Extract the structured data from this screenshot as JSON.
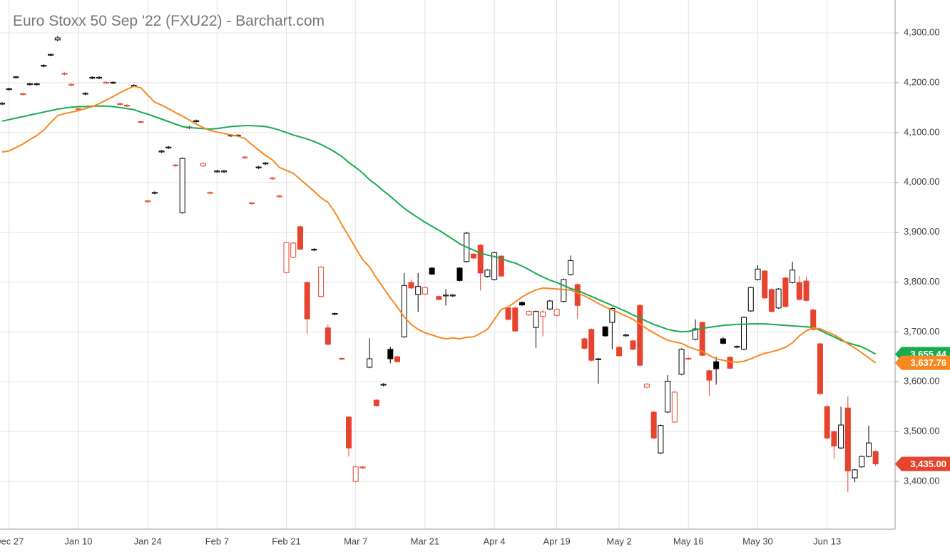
{
  "chart_data": {
    "type": "candlestick",
    "title": "Euro Stoxx 50 Sep '22 (FXU22) - Barchart.com",
    "categories": [
      null,
      "Dec 27",
      null,
      null,
      null,
      null,
      null,
      null,
      null,
      null,
      null,
      "Jan 10",
      null,
      null,
      null,
      null,
      null,
      null,
      null,
      null,
      null,
      "Jan 24",
      null,
      null,
      null,
      null,
      null,
      null,
      null,
      null,
      null,
      "Feb 7",
      null,
      null,
      null,
      null,
      null,
      null,
      null,
      null,
      null,
      "Feb 21",
      null,
      null,
      null,
      null,
      null,
      null,
      null,
      null,
      null,
      "Mar 7",
      null,
      null,
      null,
      null,
      null,
      null,
      null,
      null,
      null,
      "Mar 21",
      null,
      null,
      null,
      null,
      null,
      null,
      null,
      null,
      null,
      "Apr 4",
      null,
      null,
      null,
      null,
      null,
      null,
      null,
      null,
      "Apr 19",
      null,
      null,
      null,
      null,
      null,
      null,
      null,
      null,
      "May 2",
      null,
      null,
      null,
      null,
      null,
      null,
      null,
      null,
      null,
      "May 16",
      null,
      null,
      null,
      null,
      null,
      null,
      null,
      null,
      null,
      "May 30",
      null,
      null,
      null,
      null,
      null,
      null,
      null,
      null,
      null,
      "Jun 13",
      null,
      null,
      null,
      null,
      null,
      null,
      null
    ],
    "open": [
      4158,
      4187,
      4211,
      4177,
      4197,
      4197,
      4234,
      4256,
      4286,
      4218,
      4196,
      4147,
      4178,
      4210,
      4210,
      4200,
      4200,
      4157,
      4154,
      4194,
      4121,
      3962,
      3979,
      4062,
      4070,
      4034,
      3939,
      4110,
      4123,
      4033,
      3979,
      4022,
      4022,
      4094,
      4094,
      4050,
      3958,
      4030,
      4038,
      4008,
      3972,
      3819,
      3850,
      3911,
      3799,
      3865,
      3771,
      3708,
      3736,
      3646,
      3529,
      3400,
      3428,
      3629,
      3563,
      3594,
      3665,
      3650,
      3690,
      3799,
      3775,
      3776,
      3828,
      3771,
      3773,
      3773,
      3828,
      3841,
      3856,
      3874,
      3811,
      3805,
      3852,
      3748,
      3748,
      3759,
      3734,
      3709,
      3731,
      3746,
      3733,
      3761,
      3815,
      3795,
      3686,
      3705,
      3645,
      3710,
      3719,
      3669,
      3693,
      3682,
      3753,
      3589,
      3539,
      3457,
      3539,
      3519,
      3615,
      3646,
      3685,
      3719,
      3622,
      3640,
      3686,
      3649,
      3670,
      3665,
      3742,
      3805,
      3822,
      3785,
      3748,
      3808,
      3799,
      3799,
      3802,
      3744,
      3676,
      3550,
      3500,
      3467,
      3547,
      3407,
      3429,
      3450,
      3460
    ],
    "high": [
      4161,
      4190,
      4214,
      4180,
      4200,
      4200,
      4237,
      4259,
      4294,
      4221,
      4199,
      4150,
      4181,
      4213,
      4213,
      4203,
      4203,
      4160,
      4157,
      4197,
      4124,
      3965,
      3982,
      4065,
      4073,
      4037,
      4050,
      4113,
      4126,
      4039,
      3982,
      4025,
      4025,
      4097,
      4097,
      4053,
      3961,
      4033,
      4041,
      4011,
      3975,
      3881,
      3880,
      3913,
      3801,
      3868,
      3832,
      3715,
      3739,
      3649,
      3531,
      3431,
      3431,
      3687,
      3565,
      3597,
      3670,
      3652,
      3818,
      3805,
      3818,
      3791,
      3830,
      3773,
      3786,
      3776,
      3830,
      3901,
      3858,
      3876,
      3826,
      3861,
      3854,
      3750,
      3750,
      3761,
      3743,
      3743,
      3744,
      3764,
      3747,
      3807,
      3853,
      3797,
      3688,
      3707,
      3648,
      3712,
      3749,
      3671,
      3696,
      3684,
      3756,
      3597,
      3541,
      3514,
      3613,
      3581,
      3667,
      3649,
      3725,
      3721,
      3624,
      3650,
      3690,
      3651,
      3673,
      3731,
      3791,
      3834,
      3824,
      3787,
      3788,
      3810,
      3841,
      3812,
      3810,
      3746,
      3678,
      3552,
      3502,
      3550,
      3570,
      3425,
      3452,
      3512,
      3462
    ],
    "low": [
      4155,
      4184,
      4208,
      4174,
      4194,
      4194,
      4231,
      4253,
      4283,
      4215,
      4193,
      4144,
      4175,
      4207,
      4207,
      4197,
      4197,
      4154,
      4151,
      4191,
      4118,
      3959,
      3976,
      4059,
      4067,
      4031,
      3937,
      4107,
      4120,
      4031,
      3976,
      4019,
      4019,
      4091,
      4091,
      4047,
      3955,
      4027,
      4035,
      4005,
      3969,
      3817,
      3848,
      3864,
      3696,
      3862,
      3769,
      3673,
      3733,
      3643,
      3450,
      3398,
      3425,
      3627,
      3550,
      3591,
      3637,
      3638,
      3688,
      3786,
      3740,
      3774,
      3814,
      3763,
      3753,
      3770,
      3801,
      3839,
      3846,
      3783,
      3809,
      3803,
      3810,
      3723,
      3700,
      3752,
      3732,
      3668,
      3691,
      3744,
      3731,
      3759,
      3813,
      3726,
      3665,
      3641,
      3596,
      3690,
      3665,
      3650,
      3690,
      3663,
      3631,
      3587,
      3485,
      3455,
      3537,
      3517,
      3613,
      3643,
      3683,
      3651,
      3572,
      3594,
      3675,
      3625,
      3667,
      3663,
      3740,
      3803,
      3766,
      3739,
      3746,
      3749,
      3797,
      3763,
      3761,
      3703,
      3574,
      3485,
      3445,
      3465,
      3378,
      3398,
      3427,
      3448,
      3431
    ],
    "close": [
      4158,
      4187,
      4211,
      4177,
      4197,
      4197,
      4234,
      4256,
      4290,
      4218,
      4196,
      4147,
      4178,
      4210,
      4210,
      4200,
      4200,
      4157,
      4154,
      4194,
      4121,
      3962,
      3979,
      4062,
      4070,
      4034,
      4048,
      4110,
      4123,
      4038,
      3979,
      4022,
      4022,
      4094,
      4094,
      4050,
      3958,
      4030,
      4038,
      4008,
      3972,
      3879,
      3878,
      3866,
      3726,
      3865,
      3830,
      3675,
      3736,
      3646,
      3467,
      3429,
      3428,
      3646,
      3552,
      3594,
      3646,
      3640,
      3793,
      3788,
      3791,
      3789,
      3816,
      3765,
      3773,
      3773,
      3803,
      3898,
      3848,
      3818,
      3824,
      3859,
      3812,
      3725,
      3702,
      3754,
      3741,
      3741,
      3740,
      3762,
      3745,
      3805,
      3843,
      3753,
      3667,
      3643,
      3645,
      3692,
      3747,
      3652,
      3693,
      3665,
      3633,
      3595,
      3487,
      3512,
      3601,
      3579,
      3665,
      3646,
      3706,
      3653,
      3603,
      3626,
      3677,
      3627,
      3670,
      3729,
      3789,
      3826,
      3768,
      3741,
      3786,
      3751,
      3824,
      3765,
      3763,
      3705,
      3576,
      3487,
      3471,
      3513,
      3421,
      3423,
      3450,
      3477,
      3435
    ],
    "close_label": "3,435.00",
    "up_color": "#000000",
    "down_color": "#e8432e",
    "lines": [
      {
        "color": "#1aab4f",
        "last_label": "3,655.44",
        "values": [
          4123,
          4126,
          4129,
          4132,
          4135,
          4138,
          4141,
          4144,
          4147,
          4149,
          4151,
          4152,
          4152,
          4153,
          4153,
          4153,
          4152,
          4150,
          4148,
          4146,
          4141,
          4137,
          4132,
          4127,
          4122,
          4117,
          4112,
          4110,
          4109,
          4108,
          4107,
          4108,
          4110,
          4112,
          4113,
          4114,
          4114,
          4113,
          4112,
          4109,
          4105,
          4100,
          4095,
          4091,
          4087,
          4082,
          4076,
          4069,
          4061,
          4052,
          4040,
          4030,
          4019,
          4005,
          3995,
          3983,
          3972,
          3960,
          3948,
          3938,
          3929,
          3920,
          3912,
          3904,
          3895,
          3886,
          3877,
          3870,
          3864,
          3858,
          3854,
          3851,
          3847,
          3842,
          3838,
          3832,
          3825,
          3817,
          3810,
          3804,
          3799,
          3793,
          3787,
          3783,
          3777,
          3771,
          3765,
          3759,
          3753,
          3747,
          3741,
          3734,
          3728,
          3721,
          3715,
          3710,
          3705,
          3702,
          3700,
          3701,
          3704,
          3707,
          3709,
          3711,
          3713,
          3714,
          3715,
          3715,
          3716,
          3716,
          3716,
          3715,
          3714,
          3713,
          3712,
          3711,
          3710,
          3709,
          3703,
          3696,
          3690,
          3683,
          3678,
          3674,
          3670,
          3663,
          3655.44
        ]
      },
      {
        "color": "#f7891f",
        "last_label": "3,637.76",
        "values": [
          4061,
          4063,
          4070,
          4077,
          4086,
          4094,
          4105,
          4120,
          4134,
          4138,
          4141,
          4144,
          4148,
          4152,
          4158,
          4165,
          4172,
          4180,
          4187,
          4193,
          4190,
          4175,
          4161,
          4155,
          4148,
          4140,
          4133,
          4125,
          4117,
          4110,
          4104,
          4101,
          4098,
          4095,
          4093,
          4088,
          4076,
          4065,
          4054,
          4045,
          4030,
          4024,
          4018,
          4006,
          3994,
          3982,
          3969,
          3960,
          3940,
          3915,
          3892,
          3868,
          3845,
          3830,
          3808,
          3788,
          3768,
          3750,
          3730,
          3715,
          3705,
          3698,
          3694,
          3689,
          3686,
          3688,
          3686,
          3689,
          3690,
          3697,
          3705,
          3725,
          3745,
          3750,
          3760,
          3770,
          3778,
          3784,
          3788,
          3787,
          3786,
          3785,
          3784,
          3778,
          3772,
          3765,
          3757,
          3750,
          3744,
          3738,
          3732,
          3725,
          3716,
          3706,
          3698,
          3690,
          3683,
          3680,
          3677,
          3670,
          3665,
          3661,
          3653,
          3646,
          3643,
          3640,
          3639,
          3641,
          3646,
          3652,
          3657,
          3660,
          3664,
          3669,
          3678,
          3692,
          3702,
          3708,
          3706,
          3700,
          3694,
          3686,
          3676,
          3668,
          3658,
          3648,
          3637.76
        ]
      }
    ],
    "ylim": [
      3304,
      4366
    ],
    "yticks": [
      {
        "value": 3400,
        "label": "3,400.00"
      },
      {
        "value": 3500,
        "label": "3,500.00"
      },
      {
        "value": 3600,
        "label": "3,600.00"
      },
      {
        "value": 3700,
        "label": "3,700.00"
      },
      {
        "value": 3800,
        "label": "3,800.00"
      },
      {
        "value": 3900,
        "label": "3,900.00"
      },
      {
        "value": 4000,
        "label": "4,000.00"
      },
      {
        "value": 4100,
        "label": "4,100.00"
      },
      {
        "value": 4200,
        "label": "4,200.00"
      },
      {
        "value": 4300,
        "label": "4,300.00"
      }
    ],
    "grid": true
  }
}
